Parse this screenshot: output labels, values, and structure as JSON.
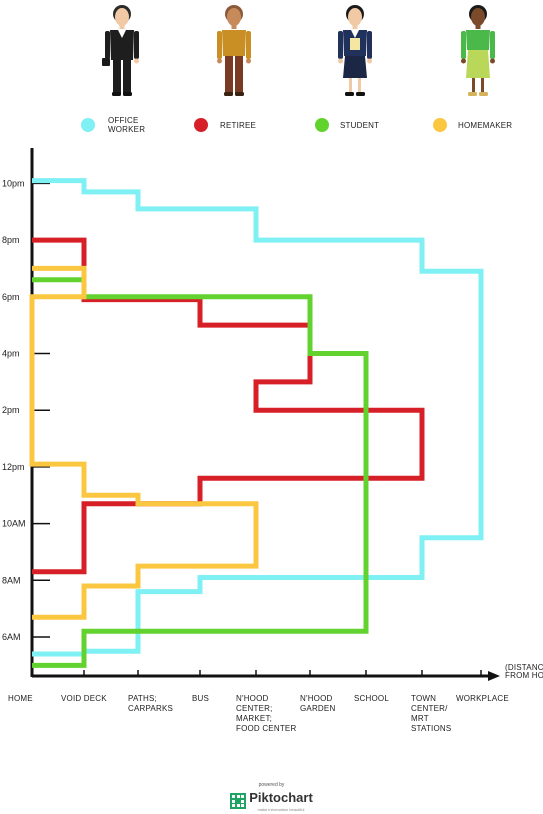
{
  "chart_data": {
    "type": "line",
    "x_categories": [
      "HOME",
      "VOID DECK",
      "PATHS;\nCARPARKS",
      "BUS",
      "N'HOOD\nCENTER;\nMARKET;\nFOOD CENTER",
      "N'HOOD\nGARDEN",
      "SCHOOL",
      "TOWN\nCENTER/\nMRT\nSTATIONS",
      "WORKPLACE"
    ],
    "x_axis_note": "(DISTANCE\nFROM HOME)",
    "y_ticks": [
      {
        "label": "6AM",
        "hour": 6
      },
      {
        "label": "8AM",
        "hour": 8
      },
      {
        "label": "10AM",
        "hour": 10
      },
      {
        "label": "12pm",
        "hour": 12
      },
      {
        "label": "2pm",
        "hour": 14
      },
      {
        "label": "4pm",
        "hour": 16
      },
      {
        "label": "6pm",
        "hour": 18
      },
      {
        "label": "8pm",
        "hour": 20
      },
      {
        "label": "10pm",
        "hour": 22
      }
    ],
    "series": [
      {
        "name": "OFFICE\nWORKER",
        "color": "#7ff0f3",
        "path": [
          [
            0,
            5.4
          ],
          [
            1,
            5.4
          ],
          [
            1,
            5.5
          ],
          [
            2,
            5.5
          ],
          [
            2,
            7.6
          ],
          [
            3,
            7.6
          ],
          [
            3,
            8.1
          ],
          [
            4,
            8.1
          ],
          [
            4,
            8.1
          ],
          [
            7,
            8.1
          ],
          [
            7,
            9.5
          ],
          [
            8,
            9.5
          ],
          [
            8,
            18.9
          ],
          [
            7,
            18.9
          ],
          [
            7,
            20.0
          ],
          [
            4,
            20.0
          ],
          [
            4,
            21.1
          ],
          [
            2,
            21.1
          ],
          [
            2,
            21.7
          ],
          [
            1,
            21.7
          ],
          [
            1,
            22.1
          ],
          [
            0,
            22.1
          ]
        ]
      },
      {
        "name": "RETIREE",
        "color": "#d61f26",
        "path": [
          [
            0,
            8.3
          ],
          [
            1,
            8.3
          ],
          [
            1,
            10.7
          ],
          [
            3,
            10.7
          ],
          [
            3,
            11.6
          ],
          [
            7,
            11.6
          ],
          [
            7,
            14.0
          ],
          [
            4,
            14.0
          ],
          [
            4,
            15.0
          ],
          [
            5,
            15.0
          ],
          [
            5,
            17.0
          ],
          [
            3,
            17.0
          ],
          [
            3,
            17.9
          ],
          [
            1,
            17.9
          ],
          [
            1,
            20.0
          ],
          [
            0,
            20.0
          ]
        ]
      },
      {
        "name": "STUDENT",
        "color": "#62d22e",
        "path": [
          [
            0,
            5.0
          ],
          [
            1,
            5.0
          ],
          [
            1,
            6.2
          ],
          [
            6,
            6.2
          ],
          [
            6,
            16.0
          ],
          [
            5,
            16.0
          ],
          [
            5,
            18.0
          ],
          [
            1,
            18.0
          ],
          [
            1,
            18.6
          ],
          [
            0,
            18.6
          ]
        ]
      },
      {
        "name": "HOMEMAKER",
        "color": "#fbc640",
        "path": [
          [
            0,
            6.7
          ],
          [
            1,
            6.7
          ],
          [
            1,
            7.8
          ],
          [
            2,
            7.8
          ],
          [
            2,
            8.5
          ],
          [
            4,
            8.5
          ],
          [
            4,
            10.7
          ],
          [
            2,
            10.7
          ],
          [
            2,
            11.0
          ],
          [
            1,
            11.0
          ],
          [
            1,
            12.1
          ],
          [
            0,
            12.1
          ],
          [
            0,
            12.1
          ],
          [
            0,
            18.0
          ],
          [
            1,
            18.0
          ],
          [
            1,
            19.0
          ],
          [
            0,
            19.0
          ]
        ]
      }
    ],
    "legend_placement": "top",
    "grid": false
  },
  "footer": {
    "powered_by": "powered by",
    "brand": "Piktochart",
    "tagline": "make information beautiful"
  }
}
